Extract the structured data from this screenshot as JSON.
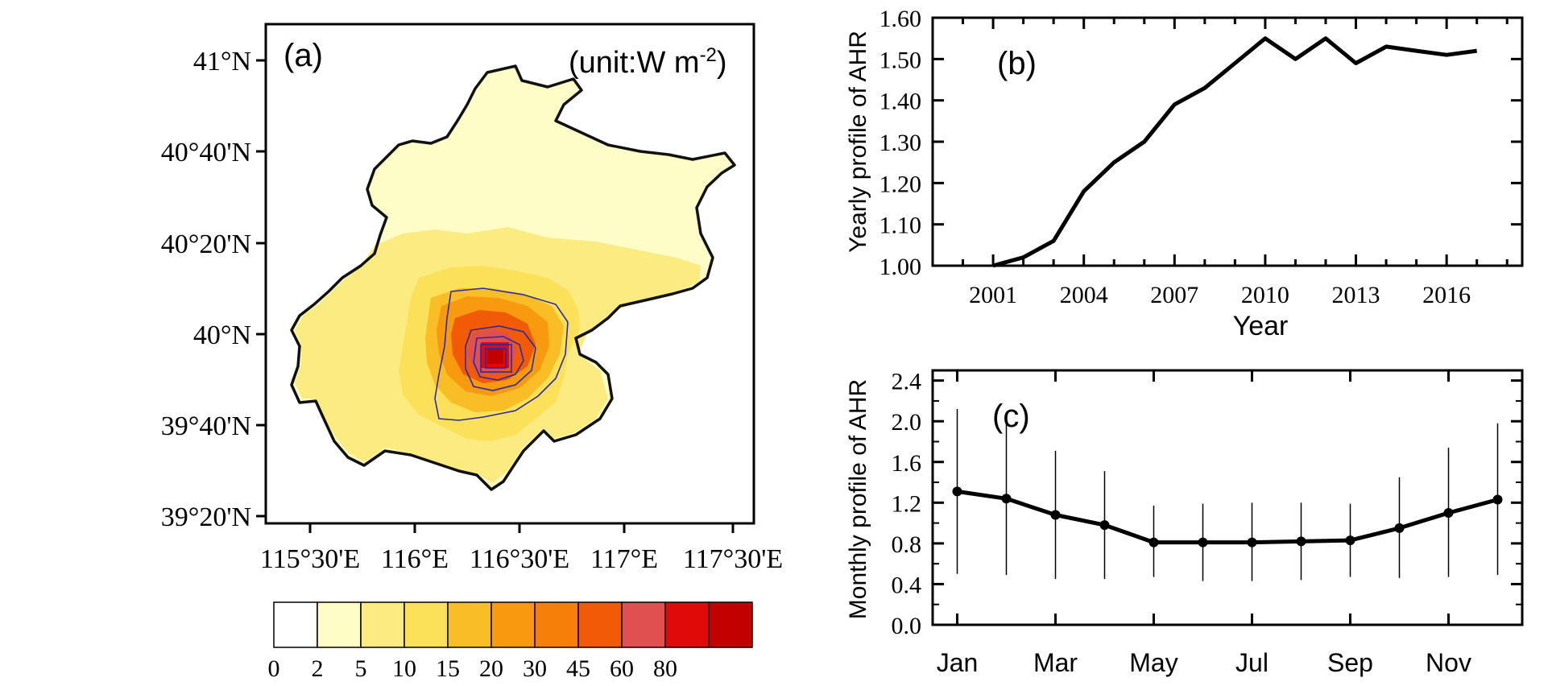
{
  "panel_a": {
    "label": "(a)",
    "unit_prefix": "(unit:W m",
    "unit_exp": "-2",
    "unit_suffix": ")",
    "lat_labels": [
      "41°N",
      "40°40'N",
      "40°20'N",
      "40°N",
      "39°40'N",
      "39°20'N"
    ],
    "lon_labels": [
      "115°30'E",
      "116°E",
      "116°30'E",
      "117°E",
      "117°30'E"
    ],
    "colorbar": {
      "labels": [
        "0",
        "2",
        "5",
        "10",
        "15",
        "20",
        "30",
        "45",
        "60",
        "80"
      ],
      "colors": [
        "#ffffff",
        "#fefdc8",
        "#fbeb80",
        "#fbe05a",
        "#f9bd25",
        "#f79a10",
        "#f67f0a",
        "#f25b06",
        "#e15050",
        "#e10a0a",
        "#c20000"
      ]
    },
    "contour_color": "#2a2aa8",
    "boundary_color": "#111111"
  },
  "chart_data": [
    {
      "type": "line",
      "panel": "(b)",
      "ylabel": "Yearly profile of AHR",
      "xlabel": "Year",
      "x": [
        2001,
        2002,
        2003,
        2004,
        2005,
        2006,
        2007,
        2008,
        2009,
        2010,
        2011,
        2012,
        2013,
        2014,
        2015,
        2016,
        2017
      ],
      "values": [
        1.0,
        1.02,
        1.06,
        1.18,
        1.25,
        1.3,
        1.39,
        1.43,
        1.49,
        1.55,
        1.5,
        1.55,
        1.49,
        1.53,
        1.52,
        1.51,
        1.52
      ],
      "xlim": [
        1999,
        2018.5
      ],
      "ylim": [
        1.0,
        1.6
      ],
      "xticks": [
        "2001",
        "2004",
        "2007",
        "2010",
        "2013",
        "2016"
      ],
      "yticks": [
        "1.00",
        "1.10",
        "1.20",
        "1.30",
        "1.40",
        "1.50",
        "1.60"
      ]
    },
    {
      "type": "line",
      "panel": "(c)",
      "ylabel": "Monthly profile of AHR",
      "x": [
        1,
        2,
        3,
        4,
        5,
        6,
        7,
        8,
        9,
        10,
        11,
        12
      ],
      "values": [
        1.31,
        1.24,
        1.08,
        0.98,
        0.81,
        0.81,
        0.81,
        0.82,
        0.83,
        0.95,
        1.1,
        1.23
      ],
      "error_low": [
        0.5,
        0.49,
        0.45,
        0.45,
        0.47,
        0.43,
        0.43,
        0.44,
        0.47,
        0.46,
        0.47,
        0.49
      ],
      "error_high": [
        2.12,
        1.99,
        1.71,
        1.51,
        1.17,
        1.19,
        1.2,
        1.2,
        1.19,
        1.45,
        1.74,
        1.98
      ],
      "xlim": [
        0.5,
        12.5
      ],
      "ylim": [
        0.0,
        2.5
      ],
      "xticks": [
        "Jan",
        "Mar",
        "May",
        "Jul",
        "Sep",
        "Nov"
      ],
      "yticks": [
        "0.0",
        "0.4",
        "0.8",
        "1.2",
        "1.6",
        "2.0",
        "2.4"
      ]
    }
  ]
}
